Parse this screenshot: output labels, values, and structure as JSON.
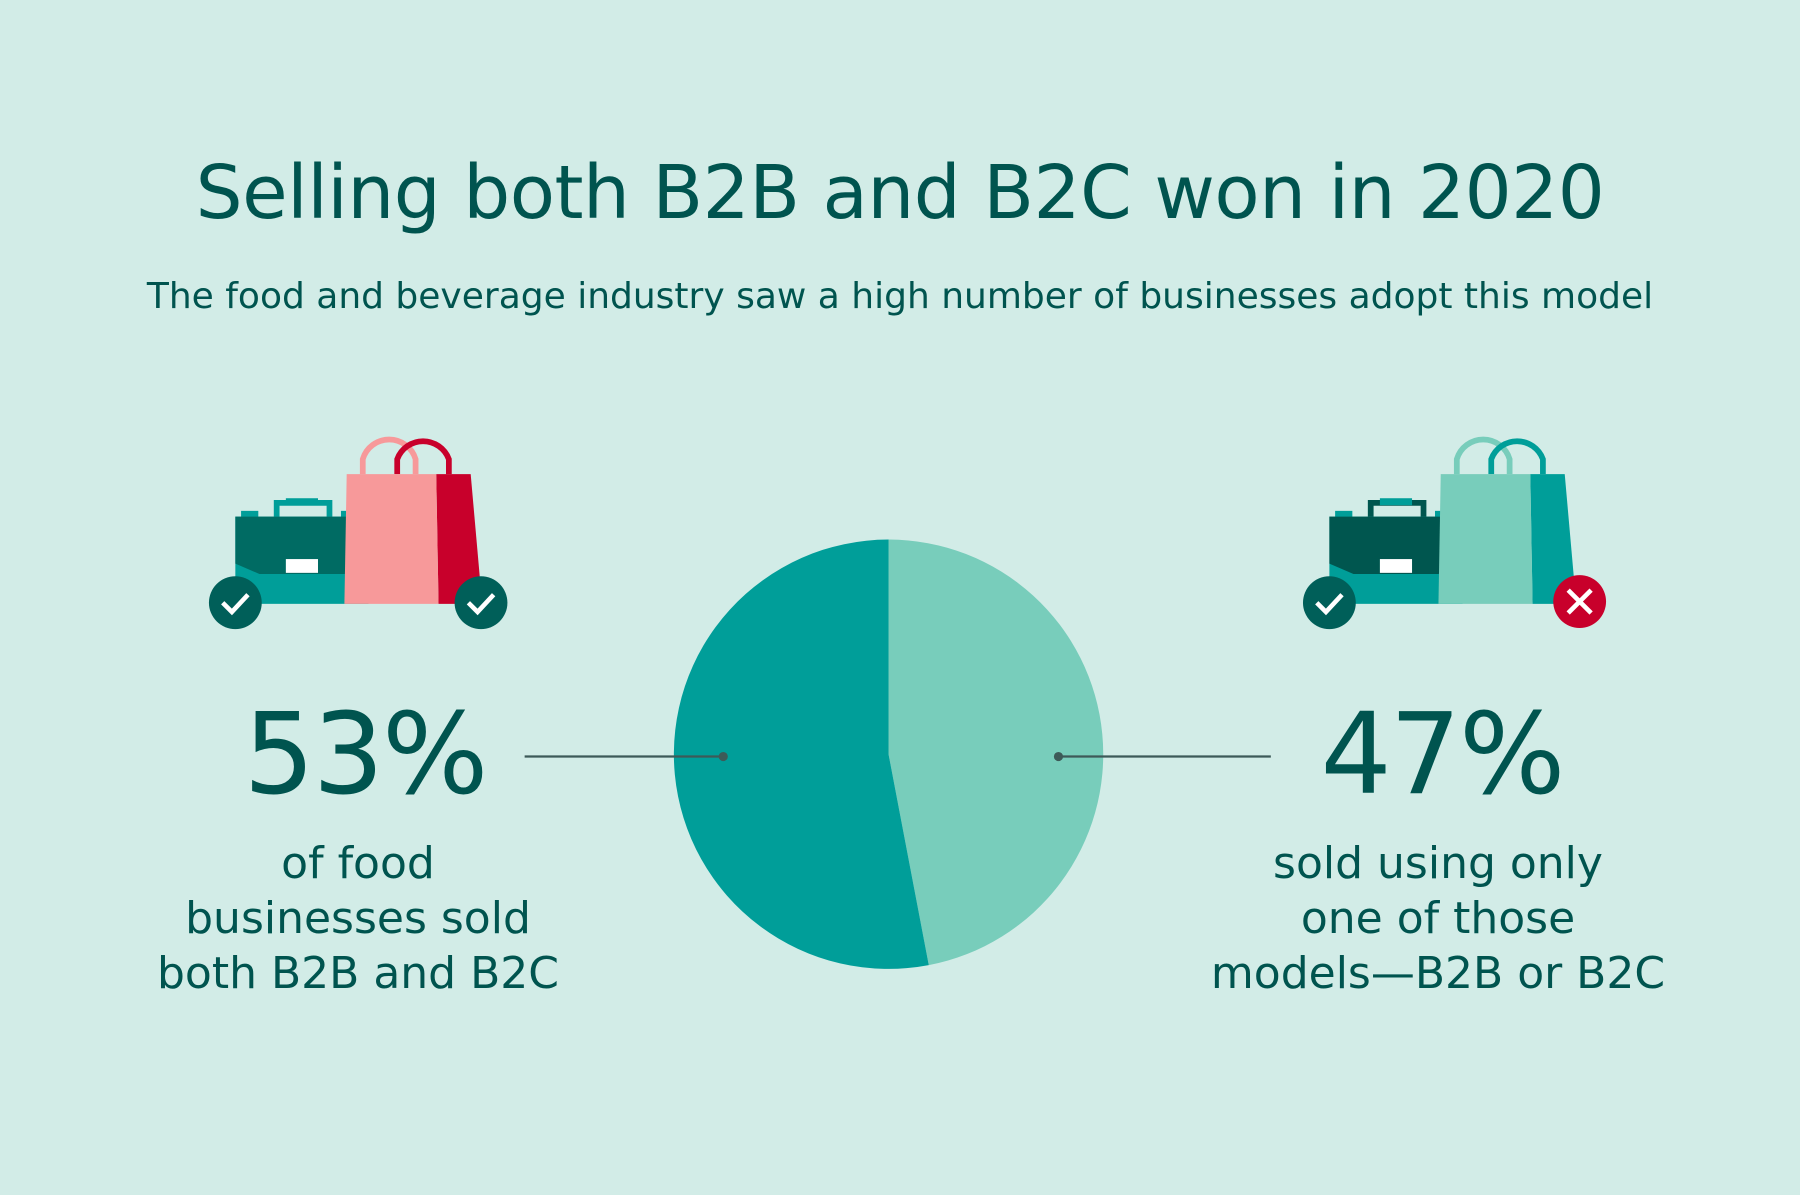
{
  "title": "Selling both B2B and B2C won in 2020",
  "subtitle": "The food and beverage industry saw a high number of businesses adopt this model",
  "left_stat": {
    "value": "53%",
    "description": [
      "of food",
      "businesses sold",
      "both B2B and B2C"
    ],
    "icons": [
      "briefcase-icon",
      "shopping-bag-icon",
      "check-icon",
      "check-icon"
    ]
  },
  "right_stat": {
    "value": "47%",
    "description": [
      "sold using only",
      "one of those",
      "models—B2B or B2C"
    ],
    "icons": [
      "briefcase-icon",
      "shopping-bag-icon",
      "check-icon",
      "x-icon"
    ]
  },
  "colors": {
    "background": "#d2ece7",
    "text": "#00544f",
    "dark_teal": "#009e99",
    "light_teal": "#78cdbb",
    "pink": "#f7999a",
    "red": "#c8002b"
  },
  "chart_data": {
    "type": "pie",
    "slices": [
      {
        "label": "53%",
        "value": 53,
        "color": "#009e99"
      },
      {
        "label": "47%",
        "value": 47,
        "color": "#78cdbb"
      }
    ]
  }
}
